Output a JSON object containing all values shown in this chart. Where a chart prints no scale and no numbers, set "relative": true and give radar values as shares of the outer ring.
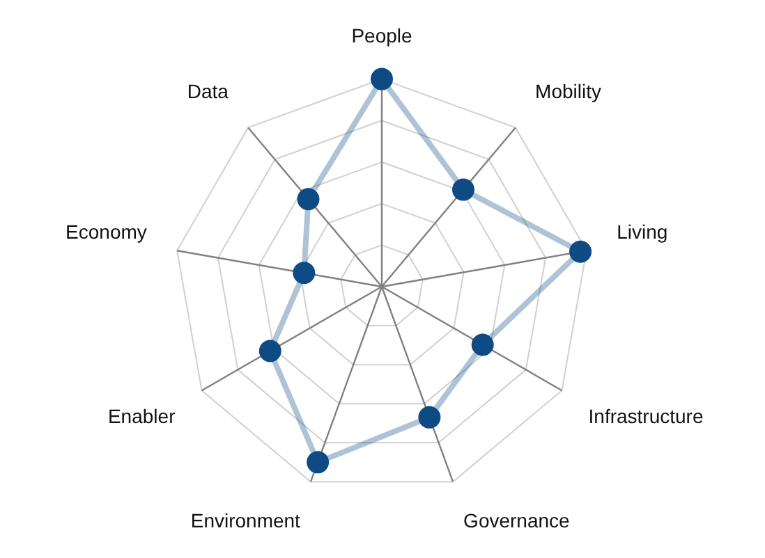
{
  "chart_data": {
    "type": "radar",
    "relative": true,
    "grid": true,
    "legend": false,
    "marker": "circle",
    "categories": [
      "People",
      "Mobility",
      "Living",
      "Infrastructure",
      "Governance",
      "Environment",
      "Enabler",
      "Economy",
      "Data"
    ],
    "series": [
      {
        "color": "#0e4a84",
        "values": [
          1.0,
          0.61,
          0.97,
          0.56,
          0.67,
          0.9,
          0.62,
          0.38,
          0.55
        ]
      }
    ]
  }
}
